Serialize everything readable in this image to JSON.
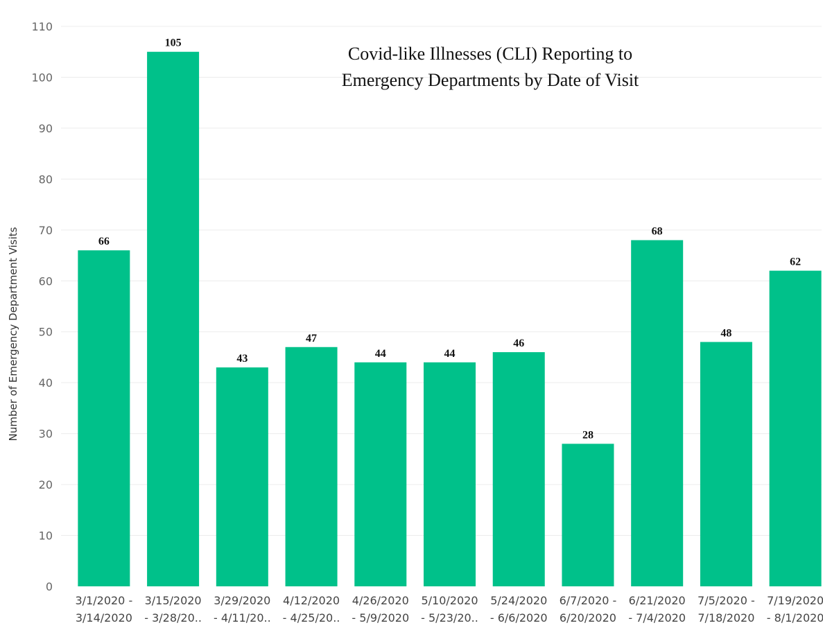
{
  "chart_data": {
    "type": "bar",
    "title_lines": [
      "Covid-like Illnesses (CLI) Reporting to",
      "Emergency Departments by Date of Visit"
    ],
    "xlabel": "",
    "ylabel": "Number of Emergency Department Visits",
    "ylim": [
      0,
      110
    ],
    "yticks": [
      0,
      10,
      20,
      30,
      40,
      50,
      60,
      70,
      80,
      90,
      100,
      110
    ],
    "grid": true,
    "bar_color": "#00c18a",
    "categories": [
      [
        "3/1/2020 -",
        "3/14/2020"
      ],
      [
        "3/15/2020",
        "- 3/28/20.."
      ],
      [
        "3/29/2020",
        "- 4/11/20.."
      ],
      [
        "4/12/2020",
        "- 4/25/20.."
      ],
      [
        "4/26/2020",
        "- 5/9/2020"
      ],
      [
        "5/10/2020",
        "- 5/23/20.."
      ],
      [
        "5/24/2020",
        "- 6/6/2020"
      ],
      [
        "6/7/2020 -",
        "6/20/2020"
      ],
      [
        "6/21/2020",
        "- 7/4/2020"
      ],
      [
        "7/5/2020 -",
        "7/18/2020"
      ],
      [
        "7/19/2020",
        "- 8/1/2020"
      ]
    ],
    "values": [
      66,
      105,
      43,
      47,
      44,
      44,
      46,
      28,
      68,
      48,
      62
    ]
  }
}
